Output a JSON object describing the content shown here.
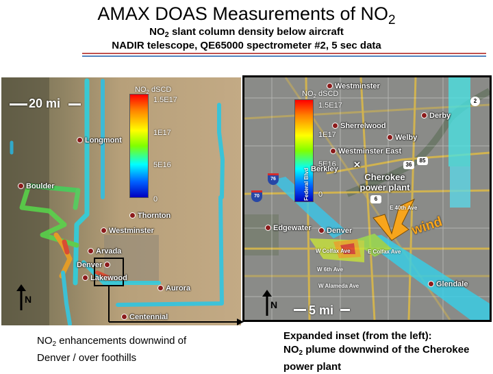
{
  "title": {
    "text": "AMAX DOAS Measurements of NO",
    "sub": "2"
  },
  "subtitle1": {
    "pre": "NO",
    "sub": "2",
    "post": " slant column density below aircraft"
  },
  "subtitle2": "NADIR telescope, QE65000 spectrometer #2, 5 sec data",
  "colors": {
    "rule_red": "#c0504d",
    "rule_blue": "#4f81bd",
    "wind_arrow": "#f7a51c",
    "inset_box": "#000000"
  },
  "left_map": {
    "scale": "20 mi",
    "north": "N",
    "colorbar": {
      "title_pre": "NO",
      "title_sub": "2",
      "title_post": " dSCD",
      "labels": [
        "1.5E17",
        "1E17",
        "5E16",
        "0"
      ]
    },
    "cities": [
      {
        "name": "Longmont"
      },
      {
        "name": "Boulder"
      },
      {
        "name": "Thornton"
      },
      {
        "name": "Westminster"
      },
      {
        "name": "Arvada"
      },
      {
        "name": "Denver"
      },
      {
        "name": "Lakewood"
      },
      {
        "name": "Aurora"
      },
      {
        "name": "Centennial"
      }
    ]
  },
  "right_map": {
    "scale": "5 mi",
    "north": "N",
    "colorbar": {
      "title_pre": "NO",
      "title_sub": "2",
      "title_post": " dSCD",
      "labels": [
        "1.5E17",
        "1E17",
        "5E16",
        "0"
      ]
    },
    "cities": [
      {
        "name": "Westminster"
      },
      {
        "name": "Derby"
      },
      {
        "name": "Sherrelwood"
      },
      {
        "name": "Welby"
      },
      {
        "name": "Westminster East"
      },
      {
        "name": "Berkley"
      },
      {
        "name": "Edgewater"
      },
      {
        "name": "Denver"
      },
      {
        "name": "Glendale"
      }
    ],
    "roads": [
      "W Colfax Ave",
      "E Colfax Ave",
      "W 6th Ave",
      "W Alameda Ave",
      "E 40th Ave",
      "Federal Blvd"
    ],
    "shields": {
      "interstate_a": "76",
      "interstate_b": "70",
      "hw_a": "36",
      "hw_b": "85",
      "hw_c": "2",
      "hw_d": "6"
    },
    "plant": "Cherokee\npower plant",
    "wind": "wind"
  },
  "caption_left": {
    "pre": "NO",
    "sub": "2",
    "post": " enhancements downwind of Denver / over foothills"
  },
  "caption_right": {
    "line1": "Expanded inset (from the left):",
    "pre": "NO",
    "sub": "2",
    "post": " plume downwind of the Cherokee power plant"
  }
}
